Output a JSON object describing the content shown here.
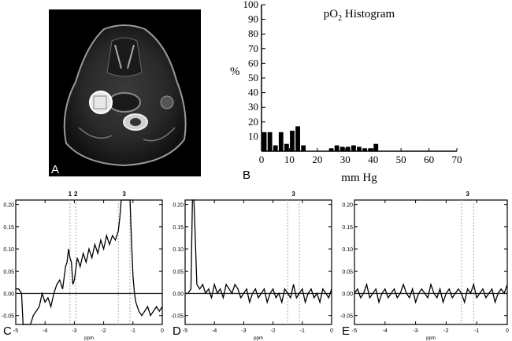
{
  "panels": {
    "a": {
      "letter": "A"
    },
    "b": {
      "letter": "B"
    },
    "c": {
      "letter": "C"
    },
    "d": {
      "letter": "D"
    },
    "e": {
      "letter": "E"
    }
  },
  "chart_data": [
    {
      "panel": "B",
      "type": "bar",
      "title": "pO2 Histogram",
      "title_main": "pO",
      "title_sub": "2",
      "title_rest": " Histogram",
      "xlabel": "mm Hg",
      "ylabel": "%",
      "xlim": [
        0,
        70
      ],
      "ylim": [
        0,
        100
      ],
      "xticks": [
        0,
        10,
        20,
        30,
        40,
        50,
        60,
        70
      ],
      "yticks": [
        10,
        20,
        30,
        40,
        50,
        60,
        70,
        80,
        90,
        100
      ],
      "x": [
        1,
        3,
        5,
        7,
        9,
        11,
        13,
        15,
        17,
        19,
        21,
        23,
        25,
        27,
        29,
        31,
        33,
        35,
        37,
        39,
        41
      ],
      "values": [
        13,
        13,
        4,
        13,
        5,
        14,
        17,
        4,
        0,
        0,
        0,
        0,
        2,
        4,
        3,
        3,
        4,
        3,
        2,
        2,
        5
      ],
      "bar_color": "#000000",
      "grid": false
    },
    {
      "panel": "C",
      "type": "line",
      "xlabel": "ppm",
      "xlim": [
        -5,
        0
      ],
      "ylim": [
        -0.07,
        0.21
      ],
      "xticks": [
        -5,
        -4,
        -3,
        -2,
        -1,
        0
      ],
      "yticks": [
        0.2,
        0.15,
        0.1,
        0.05,
        0.0,
        -0.05
      ],
      "ytick_labels": [
        "0.20",
        "0.15",
        "0.10",
        "0.05",
        "0.00",
        "-0.05"
      ],
      "peak_labels": [
        {
          "label": "1",
          "x": -3.15
        },
        {
          "label": "2",
          "x": -2.95
        },
        {
          "label": "3",
          "x": -1.3
        }
      ],
      "dotted_lines": [
        -3.15,
        -2.95,
        -1.5,
        -1.1
      ],
      "x": [
        -5,
        -4.9,
        -4.8,
        -4.75,
        -4.7,
        -4.6,
        -4.5,
        -4.4,
        -4.3,
        -4.2,
        -4.1,
        -4.0,
        -3.9,
        -3.8,
        -3.7,
        -3.6,
        -3.5,
        -3.4,
        -3.3,
        -3.25,
        -3.2,
        -3.15,
        -3.1,
        -3.05,
        -3.0,
        -2.9,
        -2.8,
        -2.7,
        -2.6,
        -2.5,
        -2.4,
        -2.3,
        -2.2,
        -2.1,
        -2.0,
        -1.9,
        -1.8,
        -1.7,
        -1.6,
        -1.5,
        -1.45,
        -1.4,
        -1.35,
        -1.3,
        -1.2,
        -1.1,
        -1.05,
        -1.0,
        -0.95,
        -0.9,
        -0.8,
        -0.7,
        -0.6,
        -0.5,
        -0.4,
        -0.3,
        -0.2,
        -0.1,
        0
      ],
      "values": [
        0.01,
        0.01,
        0.0,
        -0.07,
        -0.07,
        -0.07,
        -0.07,
        -0.05,
        -0.04,
        -0.03,
        0.0,
        -0.02,
        -0.01,
        -0.03,
        0.0,
        0.02,
        0.03,
        0.01,
        0.06,
        0.07,
        0.1,
        0.08,
        0.07,
        0.02,
        0.03,
        0.08,
        0.06,
        0.09,
        0.07,
        0.1,
        0.08,
        0.11,
        0.09,
        0.12,
        0.1,
        0.13,
        0.11,
        0.13,
        0.12,
        0.14,
        0.17,
        0.21,
        0.21,
        0.21,
        0.21,
        0.21,
        0.12,
        0.04,
        0.0,
        -0.02,
        -0.04,
        -0.05,
        -0.04,
        -0.03,
        -0.05,
        -0.04,
        -0.03,
        -0.04,
        -0.03
      ]
    },
    {
      "panel": "D",
      "type": "line",
      "xlabel": "ppm",
      "xlim": [
        -5,
        0
      ],
      "ylim": [
        -0.07,
        0.21
      ],
      "xticks": [
        -5,
        -4,
        -3,
        -2,
        -1,
        0
      ],
      "yticks": [
        0.2,
        0.15,
        0.1,
        0.05,
        0.0,
        -0.05
      ],
      "ytick_labels": [
        "0.20",
        "0.15",
        "0.10",
        "0.05",
        "0.00",
        "-0.05"
      ],
      "peak_labels": [
        {
          "label": "3",
          "x": -1.3
        }
      ],
      "dotted_lines": [
        -1.5,
        -1.1
      ],
      "x": [
        -5,
        -4.9,
        -4.8,
        -4.75,
        -4.7,
        -4.65,
        -4.6,
        -4.5,
        -4.4,
        -4.3,
        -4.2,
        -4.1,
        -4.0,
        -3.9,
        -3.8,
        -3.7,
        -3.6,
        -3.5,
        -3.4,
        -3.3,
        -3.2,
        -3.1,
        -3.0,
        -2.9,
        -2.8,
        -2.7,
        -2.6,
        -2.5,
        -2.4,
        -2.3,
        -2.2,
        -2.1,
        -2.0,
        -1.9,
        -1.8,
        -1.7,
        -1.6,
        -1.5,
        -1.4,
        -1.3,
        -1.2,
        -1.1,
        -1.0,
        -0.9,
        -0.8,
        -0.7,
        -0.6,
        -0.5,
        -0.4,
        -0.3,
        -0.2,
        -0.1,
        0
      ],
      "values": [
        0.0,
        0.0,
        0.01,
        0.21,
        0.21,
        0.12,
        0.02,
        0.01,
        0.02,
        0.0,
        0.01,
        -0.01,
        0.02,
        0.0,
        0.01,
        -0.01,
        0.02,
        0.01,
        0.0,
        0.02,
        0.01,
        -0.01,
        0.0,
        0.01,
        -0.02,
        0.0,
        0.01,
        -0.01,
        0.0,
        0.01,
        -0.02,
        0.0,
        0.01,
        -0.01,
        0.0,
        -0.02,
        0.01,
        0.0,
        -0.01,
        0.02,
        -0.01,
        0.0,
        0.01,
        -0.02,
        0.0,
        0.01,
        -0.01,
        0.0,
        -0.02,
        0.01,
        0.0,
        -0.01,
        0.01
      ]
    },
    {
      "panel": "E",
      "type": "line",
      "xlabel": "ppm",
      "xlim": [
        -5,
        0
      ],
      "ylim": [
        -0.07,
        0.21
      ],
      "xticks": [
        -5,
        -4,
        -3,
        -2,
        -1,
        0
      ],
      "yticks": [
        0.2,
        0.15,
        0.1,
        0.05,
        0.0,
        -0.05
      ],
      "ytick_labels": [
        "0.20",
        "0.15",
        "0.10",
        "0.05",
        "0.00",
        "-0.05"
      ],
      "peak_labels": [
        {
          "label": "3",
          "x": -1.3
        }
      ],
      "dotted_lines": [
        -1.5,
        -1.1
      ],
      "x": [
        -5,
        -4.9,
        -4.8,
        -4.7,
        -4.6,
        -4.5,
        -4.4,
        -4.3,
        -4.2,
        -4.1,
        -4.0,
        -3.9,
        -3.8,
        -3.7,
        -3.6,
        -3.5,
        -3.4,
        -3.3,
        -3.2,
        -3.1,
        -3.0,
        -2.9,
        -2.8,
        -2.7,
        -2.6,
        -2.5,
        -2.4,
        -2.3,
        -2.2,
        -2.1,
        -2.0,
        -1.9,
        -1.8,
        -1.7,
        -1.6,
        -1.5,
        -1.4,
        -1.3,
        -1.2,
        -1.1,
        -1.0,
        -0.9,
        -0.8,
        -0.7,
        -0.6,
        -0.5,
        -0.4,
        -0.3,
        -0.2,
        -0.1,
        0
      ],
      "values": [
        0.0,
        0.01,
        -0.01,
        0.0,
        0.02,
        -0.01,
        0.0,
        0.01,
        -0.02,
        0.0,
        0.01,
        -0.01,
        0.0,
        0.01,
        -0.01,
        0.0,
        0.02,
        0.0,
        -0.01,
        0.01,
        -0.02,
        0.0,
        0.01,
        0.0,
        -0.01,
        0.02,
        0.0,
        -0.01,
        0.01,
        -0.02,
        0.0,
        0.01,
        -0.01,
        0.0,
        0.01,
        0.0,
        -0.02,
        0.01,
        0.0,
        0.02,
        -0.01,
        0.0,
        0.01,
        -0.01,
        0.0,
        0.01,
        -0.02,
        0.0,
        0.01,
        0.0,
        0.02
      ]
    }
  ]
}
